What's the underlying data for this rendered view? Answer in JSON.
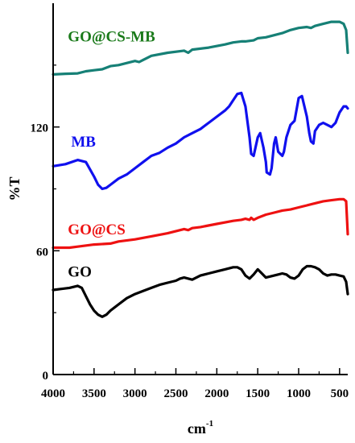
{
  "chart_data": {
    "type": "line",
    "title": "",
    "xlabel": "cm",
    "xlabel_superscript": "-1",
    "ylabel": "%T",
    "xlim": [
      4000,
      400
    ],
    "x_reversed": true,
    "ylim": [
      0,
      180
    ],
    "xticks": [
      4000,
      3500,
      3000,
      2500,
      2000,
      1500,
      1000,
      500
    ],
    "xtick_labels": [
      "4000",
      "3500",
      "3000",
      "2500",
      "2000",
      "1500",
      "1000",
      "500"
    ],
    "yticks": [
      0,
      60,
      120
    ],
    "ytick_labels": [
      "0",
      "60",
      "120"
    ],
    "grid": false,
    "legend": "none (series labelled directly on the plot)",
    "series": [
      {
        "name": "GO@CS-MB",
        "color": "#168076",
        "label_color": "#1a7a1a",
        "x": [
          4000,
          3850,
          3700,
          3600,
          3500,
          3400,
          3300,
          3200,
          3000,
          2950,
          2900,
          2800,
          2600,
          2400,
          2350,
          2300,
          2100,
          1900,
          1800,
          1700,
          1650,
          1550,
          1500,
          1400,
          1300,
          1200,
          1100,
          1000,
          900,
          850,
          800,
          700,
          600,
          500,
          450,
          420,
          400
        ],
        "values": [
          145.5,
          145.8,
          146,
          147,
          147.5,
          148,
          149.5,
          150,
          152,
          151.5,
          152.5,
          154.5,
          156,
          157,
          156,
          157.5,
          158.5,
          160,
          161,
          161.5,
          161.5,
          162,
          163,
          163.5,
          164.5,
          165.5,
          167,
          168,
          168.5,
          168,
          169,
          170,
          171,
          171,
          170,
          167,
          156
        ]
      },
      {
        "name": "MB",
        "color": "#1010ee",
        "label_color": "#1010ee",
        "x": [
          4000,
          3850,
          3700,
          3600,
          3500,
          3450,
          3400,
          3350,
          3300,
          3200,
          3100,
          3000,
          2900,
          2800,
          2700,
          2600,
          2500,
          2400,
          2300,
          2200,
          2100,
          2000,
          1900,
          1850,
          1800,
          1750,
          1700,
          1650,
          1600,
          1580,
          1550,
          1500,
          1470,
          1430,
          1400,
          1390,
          1350,
          1330,
          1300,
          1280,
          1250,
          1200,
          1180,
          1150,
          1100,
          1050,
          1000,
          960,
          900,
          870,
          850,
          820,
          800,
          750,
          700,
          650,
          600,
          550,
          500,
          450,
          420,
          400
        ],
        "values": [
          101,
          102,
          104,
          103,
          96,
          92,
          90,
          90.5,
          92,
          95,
          97,
          100,
          103,
          106,
          107.5,
          110,
          112,
          115,
          117,
          119,
          122,
          125,
          128,
          130,
          133,
          136,
          136.5,
          130,
          115,
          107,
          106,
          115,
          117,
          110,
          103,
          98,
          97,
          100,
          112,
          115,
          108,
          106,
          108,
          115,
          121,
          123,
          134,
          135,
          125,
          117,
          113,
          112,
          118,
          121,
          122,
          121,
          120,
          122,
          127,
          130,
          130,
          129
        ]
      },
      {
        "name": "GO@CS",
        "color": "#ee1111",
        "label_color": "#ee1111",
        "x": [
          4000,
          3800,
          3700,
          3500,
          3300,
          3200,
          3000,
          2800,
          2600,
          2400,
          2350,
          2300,
          2200,
          2000,
          1800,
          1700,
          1650,
          1600,
          1580,
          1550,
          1500,
          1400,
          1300,
          1200,
          1100,
          1000,
          900,
          800,
          700,
          600,
          500,
          450,
          420,
          400
        ],
        "values": [
          61.5,
          61.5,
          62,
          63,
          63.5,
          64.5,
          65.5,
          67,
          68.5,
          70.5,
          70,
          71,
          71.5,
          73,
          74.5,
          75,
          75.5,
          75,
          76,
          75,
          76,
          77.5,
          78.5,
          79.5,
          80,
          81,
          82,
          83,
          84,
          84.5,
          85,
          85,
          84,
          68
        ]
      },
      {
        "name": "GO",
        "color": "#000000",
        "label_color": "#000000",
        "x": [
          4000,
          3900,
          3800,
          3700,
          3650,
          3600,
          3550,
          3500,
          3450,
          3400,
          3350,
          3300,
          3200,
          3100,
          3000,
          2900,
          2800,
          2700,
          2600,
          2500,
          2450,
          2400,
          2300,
          2200,
          2100,
          2000,
          1900,
          1800,
          1750,
          1700,
          1650,
          1600,
          1550,
          1500,
          1450,
          1400,
          1350,
          1300,
          1250,
          1200,
          1150,
          1100,
          1050,
          1000,
          950,
          900,
          850,
          800,
          750,
          700,
          650,
          600,
          550,
          500,
          450,
          420,
          400
        ],
        "values": [
          41,
          41.5,
          42,
          43,
          42,
          38,
          34,
          31,
          29,
          28,
          29,
          31,
          34,
          37,
          39,
          40.5,
          42,
          43.5,
          44.5,
          45.5,
          46.5,
          47,
          46,
          48,
          49,
          50,
          51,
          52,
          52,
          51,
          48,
          46.5,
          48.5,
          51,
          49,
          47,
          47.5,
          48,
          48.5,
          49,
          48.5,
          47,
          46.5,
          48,
          51,
          52.5,
          52.5,
          52,
          51,
          49,
          48,
          48.5,
          48.5,
          48,
          47.5,
          45,
          39
        ]
      }
    ],
    "annotations": [
      {
        "text": "GO@CS-MB",
        "x": 3820,
        "y": 161.5,
        "color": "#1a7a1a"
      },
      {
        "text": "MB",
        "x": 3780,
        "y": 110.5,
        "color": "#1010ee"
      },
      {
        "text": "GO@CS",
        "x": 3820,
        "y": 68,
        "color": "#ee1111"
      },
      {
        "text": "GO",
        "x": 3820,
        "y": 47.5,
        "color": "#000000"
      }
    ]
  }
}
